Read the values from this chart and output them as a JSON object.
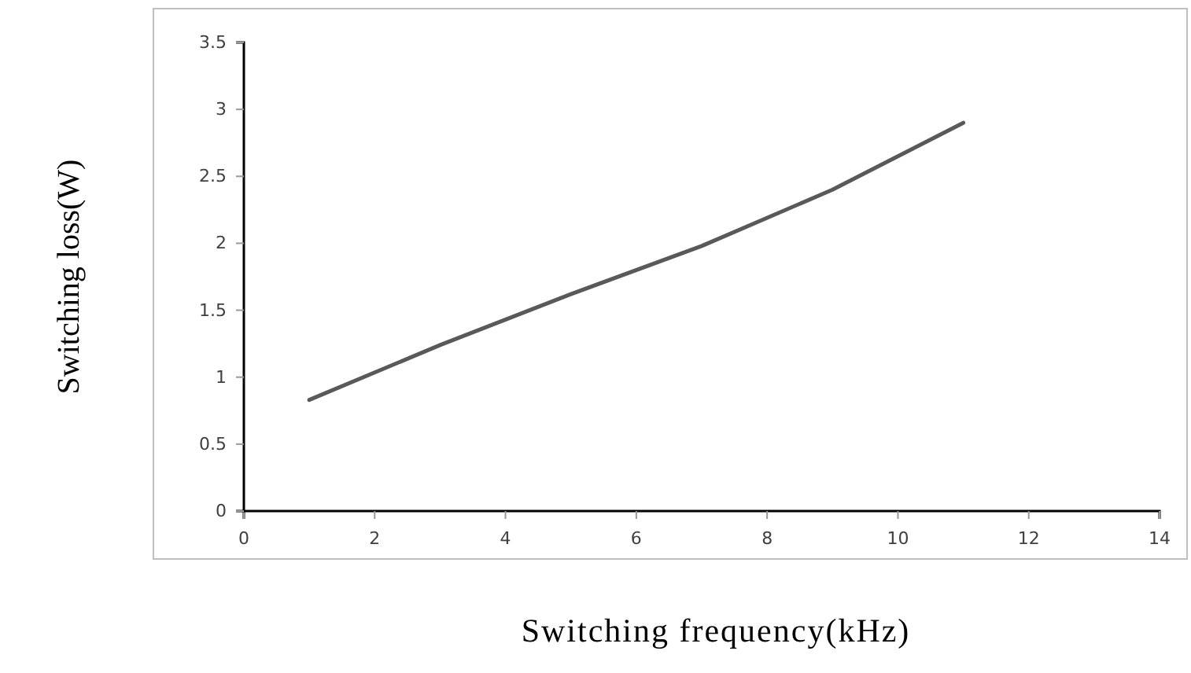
{
  "chart_data": {
    "type": "line",
    "xlabel": "Switching frequency(kHz)",
    "ylabel": "Switching loss(W)",
    "x": [
      1,
      3,
      5,
      7,
      9,
      11
    ],
    "series": [
      {
        "color": "#595959",
        "values": [
          0.83,
          1.24,
          1.62,
          1.98,
          2.4,
          2.9
        ]
      }
    ],
    "xlim": [
      0,
      14
    ],
    "xticks": [
      0,
      2,
      4,
      6,
      8,
      10,
      12,
      14
    ],
    "ylim": [
      0,
      3.5
    ],
    "yticks": [
      0,
      0.5,
      1,
      1.5,
      2,
      2.5,
      3,
      3.5
    ],
    "grid": false,
    "marker": "none",
    "line_style": "solid"
  }
}
